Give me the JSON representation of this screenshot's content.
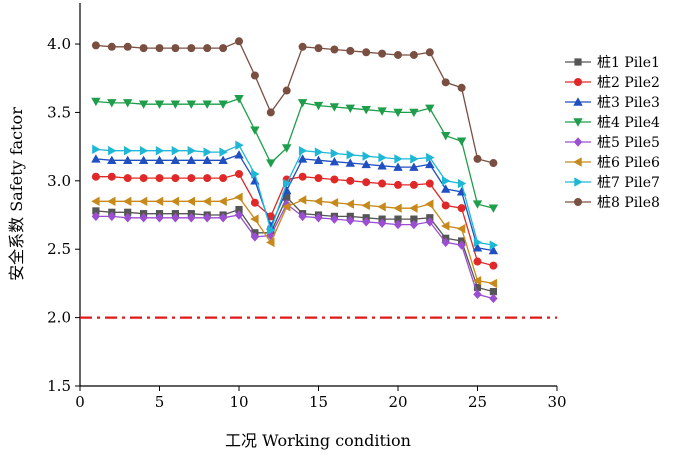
{
  "chart_data": {
    "type": "line",
    "title": "",
    "xlabel": "工况 Working condition",
    "ylabel": "安全系数 Safety factor",
    "xlim": [
      0,
      30
    ],
    "ylim": [
      1.5,
      4.3
    ],
    "xticks": [
      "0",
      "5",
      "10",
      "15",
      "20",
      "25",
      "30"
    ],
    "yticks": [
      "1.5",
      "2.0",
      "2.5",
      "3.0",
      "3.5",
      "4.0"
    ],
    "grid": false,
    "legend_position": "right",
    "reference_line": {
      "y": 2.0,
      "color": "#e01818",
      "style": "dash-dot"
    },
    "x": [
      1,
      2,
      3,
      4,
      5,
      6,
      7,
      8,
      9,
      10,
      11,
      12,
      13,
      14,
      15,
      16,
      17,
      18,
      19,
      20,
      21,
      22,
      23,
      24,
      25,
      26
    ],
    "series": [
      {
        "name": "桩1 Pile1",
        "color": "#555555",
        "marker": "square",
        "values": [
          2.78,
          2.77,
          2.77,
          2.76,
          2.76,
          2.76,
          2.76,
          2.75,
          2.75,
          2.79,
          2.62,
          2.62,
          2.88,
          2.76,
          2.75,
          2.74,
          2.74,
          2.73,
          2.72,
          2.72,
          2.72,
          2.73,
          2.58,
          2.56,
          2.22,
          2.19
        ]
      },
      {
        "name": "桩2 Pile2",
        "color": "#e02828",
        "marker": "circle",
        "values": [
          3.03,
          3.03,
          3.02,
          3.02,
          3.02,
          3.02,
          3.02,
          3.02,
          3.02,
          3.05,
          2.84,
          2.74,
          3.01,
          3.03,
          3.02,
          3.01,
          3.0,
          2.99,
          2.98,
          2.97,
          2.97,
          2.98,
          2.82,
          2.8,
          2.41,
          2.38
        ]
      },
      {
        "name": "桩3 Pile3",
        "color": "#1f4fc0",
        "marker": "triangle-up",
        "values": [
          3.16,
          3.15,
          3.15,
          3.15,
          3.15,
          3.15,
          3.15,
          3.15,
          3.15,
          3.19,
          3.0,
          2.67,
          2.93,
          3.16,
          3.15,
          3.14,
          3.13,
          3.12,
          3.11,
          3.1,
          3.1,
          3.12,
          2.94,
          2.92,
          2.51,
          2.49
        ]
      },
      {
        "name": "桩4 Pile4",
        "color": "#1e9e4a",
        "marker": "triangle-down",
        "values": [
          3.58,
          3.57,
          3.57,
          3.56,
          3.56,
          3.56,
          3.56,
          3.56,
          3.56,
          3.6,
          3.37,
          3.13,
          3.24,
          3.57,
          3.55,
          3.54,
          3.53,
          3.52,
          3.51,
          3.5,
          3.5,
          3.53,
          3.33,
          3.29,
          2.83,
          2.8
        ]
      },
      {
        "name": "桩5 Pile5",
        "color": "#9b4fd0",
        "marker": "diamond",
        "values": [
          2.74,
          2.74,
          2.73,
          2.73,
          2.73,
          2.73,
          2.73,
          2.73,
          2.73,
          2.75,
          2.59,
          2.6,
          2.83,
          2.74,
          2.73,
          2.72,
          2.71,
          2.7,
          2.69,
          2.68,
          2.68,
          2.7,
          2.55,
          2.53,
          2.17,
          2.14
        ]
      },
      {
        "name": "桩6 Pile6",
        "color": "#c78a1a",
        "marker": "triangle-left",
        "values": [
          2.85,
          2.85,
          2.85,
          2.85,
          2.85,
          2.85,
          2.85,
          2.85,
          2.85,
          2.88,
          2.72,
          2.55,
          2.81,
          2.86,
          2.85,
          2.84,
          2.83,
          2.82,
          2.81,
          2.8,
          2.8,
          2.83,
          2.67,
          2.65,
          2.27,
          2.25
        ]
      },
      {
        "name": "桩7 Pile7",
        "color": "#1fb7d6",
        "marker": "triangle-right",
        "values": [
          3.23,
          3.22,
          3.22,
          3.22,
          3.22,
          3.22,
          3.22,
          3.21,
          3.21,
          3.26,
          3.05,
          2.64,
          2.98,
          3.22,
          3.21,
          3.2,
          3.19,
          3.18,
          3.17,
          3.16,
          3.16,
          3.17,
          3.0,
          2.98,
          2.55,
          2.53
        ]
      },
      {
        "name": "桩8 Pile8",
        "color": "#7a4f42",
        "marker": "circle",
        "values": [
          3.99,
          3.98,
          3.98,
          3.97,
          3.97,
          3.97,
          3.97,
          3.97,
          3.97,
          4.02,
          3.77,
          3.5,
          3.66,
          3.98,
          3.97,
          3.96,
          3.95,
          3.94,
          3.93,
          3.92,
          3.92,
          3.94,
          3.72,
          3.68,
          3.16,
          3.13
        ]
      }
    ]
  }
}
